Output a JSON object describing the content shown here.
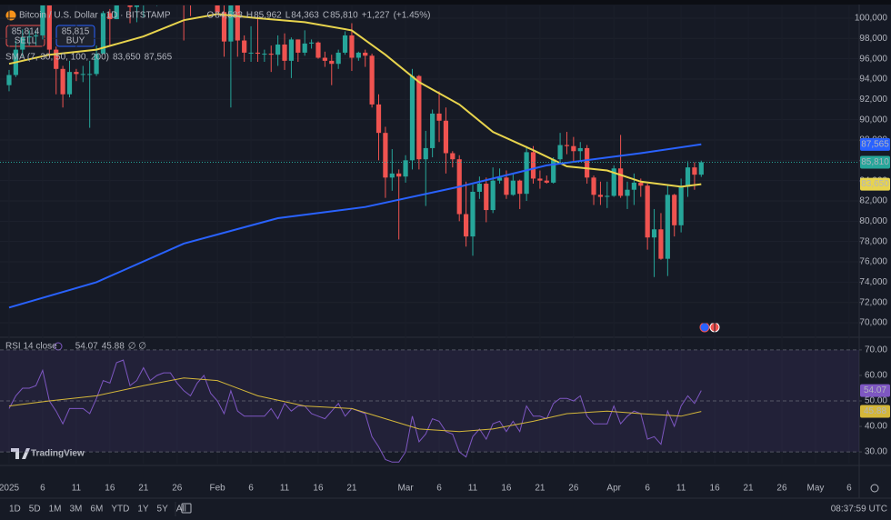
{
  "chart_data": {
    "type": "candlestick",
    "title": "Bitcoin / U.S. Dollar · 1D · BITSTAMP",
    "ohlc_legend": [
      {
        "key": "O",
        "value": 84583,
        "label": "84,583"
      },
      {
        "key": "H",
        "value": 85962,
        "label": "85,962"
      },
      {
        "key": "L",
        "value": 84363,
        "label": "84,363"
      },
      {
        "key": "C",
        "value": 85810,
        "label": "85,810"
      }
    ],
    "change": {
      "value": 1227,
      "label": "+1,227"
    },
    "change_pct": {
      "value": 1.45,
      "label": "(+1.45%)"
    },
    "sell": {
      "price": {
        "value": 85814,
        "label": "85,814"
      },
      "text": "SELL"
    },
    "buy": {
      "price": {
        "value": 85815,
        "label": "85,815"
      },
      "text": "BUY"
    },
    "indicator_label": "SMA (7, 30, 50, 100, 200)",
    "up_color": "#26a69a",
    "down_color": "#ef5350",
    "open": [
      93400,
      94400,
      96900,
      98100,
      98200,
      98300,
      102200,
      96900,
      95000,
      92500,
      94700,
      94500,
      94500,
      94500,
      96500,
      100500,
      99900,
      104100,
      104400,
      101100,
      102000,
      106100,
      103600,
      104000,
      104800,
      104700,
      102600,
      102000,
      101300,
      103700,
      104700,
      102400,
      100600,
      97700,
      101400,
      97800,
      96600,
      96600,
      96500,
      96500,
      96400,
      97400,
      95800,
      97900,
      96600,
      97500,
      97600,
      96100,
      95800,
      95500,
      96600,
      98300,
      96100,
      96600,
      96300,
      91500,
      88700,
      84300,
      84700,
      84400,
      86000,
      94300,
      86100,
      87200,
      90600,
      89900,
      86700,
      86100,
      80700,
      78500,
      82900,
      83700,
      81100,
      84000,
      84300,
      82600,
      84000,
      82700,
      86800,
      84200,
      84000,
      83800,
      86100,
      87500,
      87400,
      86900,
      87200,
      84300,
      82600,
      82400,
      82500,
      85200,
      82500,
      83100,
      83800,
      83500,
      78400,
      79200,
      76300,
      82600,
      79600,
      83400,
      85300,
      84583
    ],
    "high": [
      94900,
      97800,
      98900,
      98800,
      98800,
      102500,
      102700,
      97200,
      95300,
      95800,
      95000,
      95300,
      95800,
      97300,
      100700,
      100900,
      105900,
      104900,
      106300,
      109300,
      107200,
      106300,
      106800,
      107100,
      105300,
      105500,
      103200,
      103800,
      104800,
      106400,
      106000,
      102800,
      101500,
      102500,
      101700,
      98300,
      99200,
      100200,
      96900,
      97300,
      98300,
      98500,
      98100,
      97900,
      98800,
      97900,
      97700,
      96700,
      96400,
      96900,
      98700,
      99500,
      96700,
      96900,
      96500,
      92500,
      89300,
      87100,
      85100,
      86500,
      95000,
      94400,
      88900,
      91000,
      92800,
      91200,
      86900,
      86500,
      83900,
      83600,
      84400,
      84300,
      85300,
      85200,
      85000,
      84700,
      84100,
      87400,
      87400,
      85000,
      84500,
      86300,
      88700,
      88800,
      88300,
      87800,
      87500,
      84500,
      83900,
      83900,
      85500,
      88500,
      83900,
      84700,
      84200,
      83700,
      81200,
      80800,
      83500,
      82700,
      84200,
      85900,
      85800,
      85962
    ],
    "low": [
      92800,
      94200,
      96200,
      97300,
      97300,
      97900,
      96100,
      92500,
      91200,
      92200,
      93800,
      93700,
      89200,
      94300,
      96500,
      97300,
      99900,
      102300,
      99500,
      99600,
      100100,
      103300,
      101200,
      102800,
      104100,
      102500,
      97800,
      100200,
      101300,
      103300,
      101500,
      100300,
      96200,
      91200,
      96200,
      95700,
      95700,
      95700,
      95700,
      94700,
      95300,
      94900,
      94100,
      95700,
      96300,
      97000,
      96000,
      95200,
      93400,
      95000,
      96400,
      94800,
      95800,
      95200,
      91200,
      86000,
      82300,
      83000,
      78200,
      83800,
      85100,
      85100,
      81500,
      86300,
      87800,
      84700,
      85300,
      80000,
      77500,
      76600,
      82200,
      79900,
      80800,
      83700,
      82200,
      82500,
      81200,
      82000,
      83700,
      83200,
      83700,
      83700,
      85600,
      86600,
      85900,
      85900,
      83700,
      81600,
      81600,
      81300,
      82400,
      82300,
      81200,
      81600,
      82400,
      77200,
      74500,
      76200,
      74600,
      78500,
      78900,
      82400,
      83100,
      84363
    ],
    "close": [
      94400,
      96900,
      98100,
      98200,
      98300,
      102200,
      96900,
      95000,
      92500,
      94700,
      94500,
      94500,
      94500,
      96500,
      100500,
      99900,
      104100,
      104400,
      101100,
      102000,
      106100,
      103600,
      104000,
      104800,
      104700,
      102600,
      102000,
      101300,
      103700,
      104700,
      102400,
      100600,
      97700,
      101400,
      97800,
      96600,
      96600,
      96500,
      96500,
      96400,
      97400,
      95800,
      97900,
      96600,
      97500,
      97600,
      96100,
      95800,
      95500,
      96600,
      98300,
      96100,
      96600,
      96300,
      91500,
      88700,
      84300,
      84700,
      84400,
      86000,
      94300,
      86100,
      87200,
      90600,
      89900,
      86700,
      86100,
      80700,
      78500,
      82900,
      83700,
      81100,
      84000,
      84300,
      82600,
      84000,
      82700,
      86800,
      84200,
      84000,
      83800,
      86100,
      87500,
      87400,
      86900,
      87200,
      84300,
      82600,
      82400,
      82500,
      85200,
      82500,
      83100,
      83800,
      83500,
      78400,
      79200,
      76300,
      82600,
      79600,
      83400,
      85300,
      84583,
      85810
    ],
    "overlays": [
      {
        "color": "#e8d44d",
        "x": [
          0,
          6,
          13,
          20,
          26,
          31,
          37,
          44,
          51,
          56,
          61,
          67,
          72,
          78,
          83,
          89,
          94,
          100,
          103
        ],
        "values": [
          95500,
          96400,
          96900,
          98200,
          99800,
          100400,
          100000,
          99600,
          98800,
          96400,
          93700,
          91500,
          88800,
          87000,
          85400,
          85000,
          83900,
          83400,
          83650
        ],
        "value_labels": [
          null,
          null,
          null,
          null,
          null,
          null,
          null,
          null,
          null,
          null,
          null,
          null,
          null,
          null,
          null,
          null,
          null,
          null,
          "83,650"
        ]
      },
      {
        "color": "#2962ff",
        "x": [
          0,
          13,
          26,
          40,
          53,
          67,
          80,
          94,
          103
        ],
        "values": [
          71500,
          74000,
          77800,
          80300,
          81400,
          83400,
          85500,
          86700,
          87565
        ],
        "value_labels": [
          null,
          null,
          null,
          null,
          null,
          null,
          null,
          null,
          "87,565"
        ]
      }
    ],
    "xlim": [
      -1.35,
      126.5
    ],
    "xticks": [
      {
        "value": 0,
        "label": "2025"
      },
      {
        "value": 5,
        "label": "6"
      },
      {
        "value": 10,
        "label": "11"
      },
      {
        "value": 15,
        "label": "16"
      },
      {
        "value": 20,
        "label": "21"
      },
      {
        "value": 25,
        "label": "26"
      },
      {
        "value": 31,
        "label": "Feb"
      },
      {
        "value": 36,
        "label": "6"
      },
      {
        "value": 41,
        "label": "11"
      },
      {
        "value": 46,
        "label": "16"
      },
      {
        "value": 51,
        "label": "21"
      },
      {
        "value": 59,
        "label": "Mar"
      },
      {
        "value": 64,
        "label": "6"
      },
      {
        "value": 69,
        "label": "11"
      },
      {
        "value": 74,
        "label": "16"
      },
      {
        "value": 79,
        "label": "21"
      },
      {
        "value": 84,
        "label": "26"
      },
      {
        "value": 90,
        "label": "Apr"
      },
      {
        "value": 95,
        "label": "6"
      },
      {
        "value": 100,
        "label": "11"
      },
      {
        "value": 105,
        "label": "16"
      },
      {
        "value": 110,
        "label": "21"
      },
      {
        "value": 115,
        "label": "26"
      },
      {
        "value": 120,
        "label": "May"
      },
      {
        "value": 125,
        "label": "6"
      }
    ],
    "ylim": [
      68660,
      101250
    ],
    "yticks": [
      {
        "value": 70000,
        "label": "70,000"
      },
      {
        "value": 72000,
        "label": "72,000"
      },
      {
        "value": 74000,
        "label": "74,000"
      },
      {
        "value": 76000,
        "label": "76,000"
      },
      {
        "value": 78000,
        "label": "78,000"
      },
      {
        "value": 80000,
        "label": "80,000"
      },
      {
        "value": 82000,
        "label": "82,000"
      },
      {
        "value": 84000,
        "label": "84,000"
      },
      {
        "value": 86000,
        "label": "86,000"
      },
      {
        "value": 88000,
        "label": "88,000"
      },
      {
        "value": 90000,
        "label": "90,000"
      },
      {
        "value": 92000,
        "label": "92,000"
      },
      {
        "value": 94000,
        "label": "94,000"
      },
      {
        "value": 96000,
        "label": "96,000"
      },
      {
        "value": 98000,
        "label": "98,000"
      },
      {
        "value": 100000,
        "label": "100,000"
      }
    ],
    "rsi": {
      "label": "RSI 14 close",
      "extra": "∅ ∅",
      "ylim": [
        25.4,
        74.6
      ],
      "yticks": [
        {
          "value": 30,
          "label": "30.00"
        },
        {
          "value": 40,
          "label": "40.00"
        },
        {
          "value": 50,
          "label": "50.00"
        },
        {
          "value": 60,
          "label": "60.00"
        },
        {
          "value": 70,
          "label": "70.00"
        }
      ],
      "series": [
        {
          "color": "#7e57c2",
          "values": [
            47,
            52,
            55,
            55,
            56,
            62,
            50,
            46,
            41,
            47,
            47,
            47,
            45,
            51,
            58,
            57,
            65,
            66,
            56,
            58,
            63,
            58,
            60,
            61,
            61,
            57,
            54,
            52,
            57,
            60,
            53,
            50,
            45,
            54,
            46,
            44,
            44,
            44,
            44,
            47,
            43,
            49,
            46,
            48,
            48,
            45,
            44,
            43,
            46,
            49,
            44,
            47,
            46,
            45,
            36,
            32,
            27,
            26,
            26,
            30,
            44,
            34,
            37,
            43,
            42,
            38,
            37,
            30,
            28,
            36,
            39,
            35,
            41,
            42,
            38,
            42,
            38,
            48,
            44,
            44,
            43,
            49,
            51,
            51,
            50,
            52,
            44,
            41,
            41,
            41,
            48,
            41,
            44,
            46,
            45,
            35,
            36,
            33,
            46,
            40,
            48,
            52,
            49,
            54.07
          ]
        },
        {
          "color": "#d4b73a",
          "x": [
            0,
            6,
            13,
            20,
            26,
            31,
            37,
            44,
            51,
            56,
            61,
            67,
            72,
            78,
            83,
            89,
            94,
            100,
            103
          ],
          "values": [
            48,
            50,
            52,
            56,
            59,
            58,
            52,
            48,
            47,
            43,
            39,
            38,
            39,
            42,
            45,
            46,
            45,
            44,
            45.88
          ]
        }
      ]
    },
    "brand": "TradingView",
    "ranges": [
      "1D",
      "5D",
      "1M",
      "3M",
      "6M",
      "YTD",
      "1Y",
      "5Y",
      "All"
    ],
    "clock": "08:37:59 UTC"
  }
}
